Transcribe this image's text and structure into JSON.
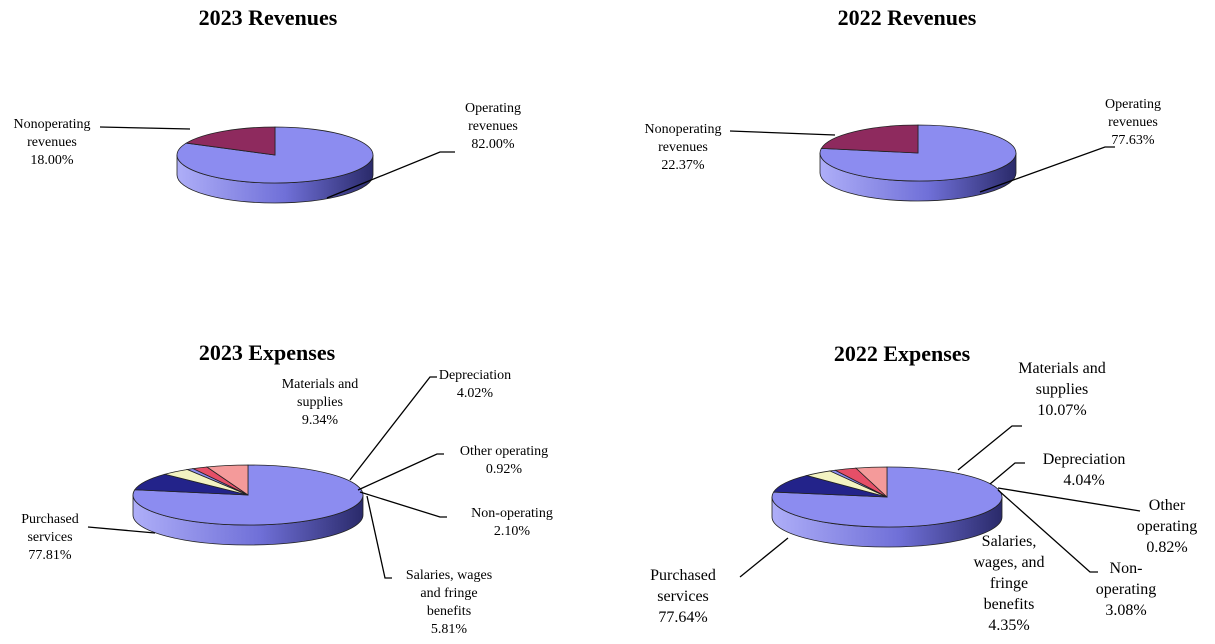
{
  "colors": {
    "operating": "#8c8cf0",
    "nonoperating": "#8e2a5e",
    "purchased": "#8c8cf0",
    "materials": "#23238a",
    "depreciation": "#f3f3c2",
    "other": "#8c8cf0",
    "nonop_exp": "#e64f68",
    "salaries": "#f49a9a"
  },
  "chart_data": [
    {
      "type": "pie",
      "title": "2023 Revenues",
      "slices": [
        {
          "label": "Operating revenues",
          "value": 82.0,
          "display": "82.00%",
          "lines": [
            "Operating",
            "revenues"
          ]
        },
        {
          "label": "Nonoperating revenues",
          "value": 18.0,
          "display": "18.00%",
          "lines": [
            "Nonoperating",
            "revenues"
          ]
        }
      ]
    },
    {
      "type": "pie",
      "title": "2022 Revenues",
      "slices": [
        {
          "label": "Operating revenues",
          "value": 77.63,
          "display": "77.63%",
          "lines": [
            "Operating",
            "revenues"
          ]
        },
        {
          "label": "Nonoperating revenues",
          "value": 22.37,
          "display": "22.37%",
          "lines": [
            "Nonoperating",
            "revenues"
          ]
        }
      ]
    },
    {
      "type": "pie",
      "title": "2023 Expenses",
      "slices": [
        {
          "label": "Purchased services",
          "value": 77.81,
          "display": "77.81%",
          "lines": [
            "Purchased",
            "services"
          ]
        },
        {
          "label": "Materials and supplies",
          "value": 9.34,
          "display": "9.34%",
          "lines": [
            "Materials and",
            "supplies"
          ]
        },
        {
          "label": "Depreciation",
          "value": 4.02,
          "display": "4.02%",
          "lines": [
            "Depreciation"
          ]
        },
        {
          "label": "Other operating",
          "value": 0.92,
          "display": "0.92%",
          "lines": [
            "Other operating"
          ]
        },
        {
          "label": "Non-operating",
          "value": 2.1,
          "display": "2.10%",
          "lines": [
            "Non-operating"
          ]
        },
        {
          "label": "Salaries, wages and fringe benefits",
          "value": 5.81,
          "display": "5.81%",
          "lines": [
            "Salaries, wages",
            "and fringe",
            "benefits"
          ]
        }
      ]
    },
    {
      "type": "pie",
      "title": "2022 Expenses",
      "slices": [
        {
          "label": "Purchased services",
          "value": 77.64,
          "display": "77.64%",
          "lines": [
            "Purchased",
            "services"
          ]
        },
        {
          "label": "Materials and supplies",
          "value": 10.07,
          "display": "10.07%",
          "lines": [
            "Materials and",
            "supplies"
          ]
        },
        {
          "label": "Depreciation",
          "value": 4.04,
          "display": "4.04%",
          "lines": [
            "Depreciation"
          ]
        },
        {
          "label": "Other operating",
          "value": 0.82,
          "display": "0.82%",
          "lines": [
            "Other",
            "operating"
          ]
        },
        {
          "label": "Non-operating",
          "value": 3.08,
          "display": "3.08%",
          "lines": [
            "Non-",
            "operating"
          ]
        },
        {
          "label": "Salaries, wages, and fringe benefits",
          "value": 4.35,
          "display": "4.35%",
          "lines": [
            "Salaries,",
            "wages, and",
            "fringe",
            "benefits"
          ]
        }
      ]
    }
  ]
}
